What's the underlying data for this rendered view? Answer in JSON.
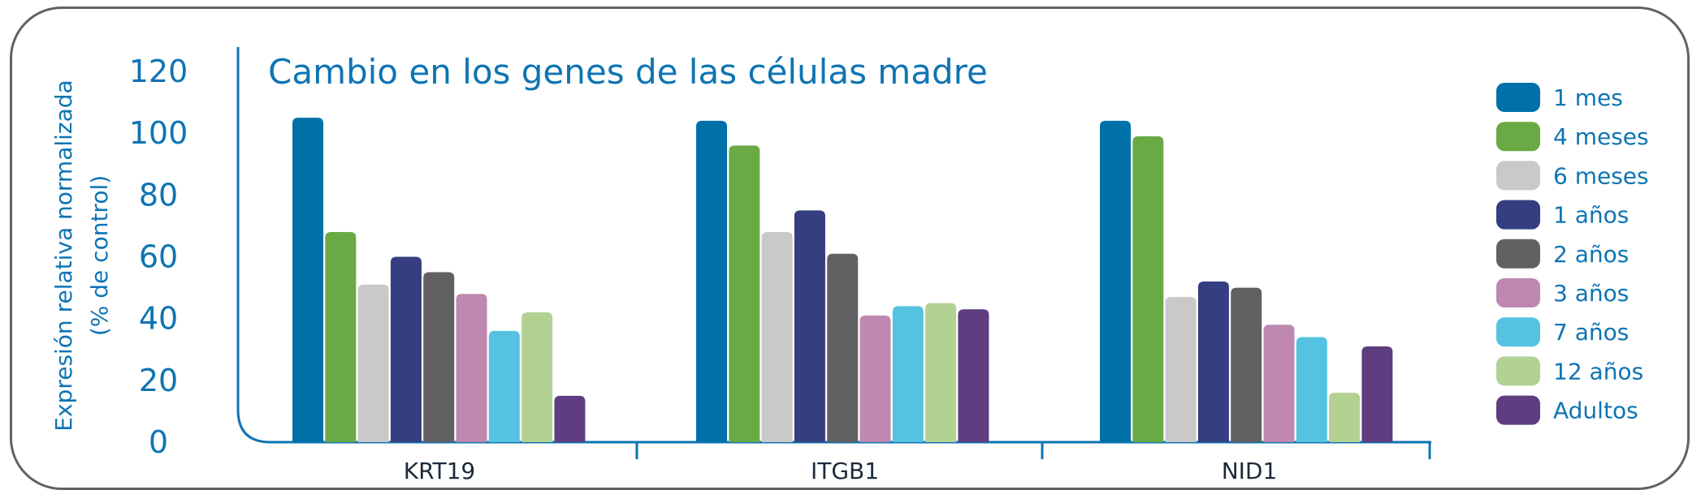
{
  "chart_data": {
    "type": "bar",
    "title": "Cambio en los genes de las células madre",
    "ylabel_line1": "Expresión relativa normalizada",
    "ylabel_line2": "(% de control)",
    "xlabel": "",
    "ylim": [
      0,
      120
    ],
    "yticks": [
      "0",
      "20",
      "40",
      "60",
      "80",
      "100",
      "120"
    ],
    "categories": [
      "KRT19",
      "ITGB1",
      "NID1"
    ],
    "legend_position": "right",
    "grid": false,
    "series": [
      {
        "name": "1 mes",
        "color": "#0071a8",
        "values": [
          105,
          104,
          104
        ]
      },
      {
        "name": "4 meses",
        "color": "#6aaa44",
        "values": [
          68,
          96,
          99
        ]
      },
      {
        "name": "6 meses",
        "color": "#c9c9c9",
        "values": [
          51,
          68,
          47
        ]
      },
      {
        "name": "1 años",
        "color": "#343e80",
        "values": [
          60,
          75,
          52
        ]
      },
      {
        "name": "2 años",
        "color": "#616163",
        "values": [
          55,
          61,
          50
        ]
      },
      {
        "name": "3 años",
        "color": "#bf88b0",
        "values": [
          48,
          41,
          38
        ]
      },
      {
        "name": "7 años",
        "color": "#55c2e2",
        "values": [
          36,
          44,
          34
        ]
      },
      {
        "name": "12 años",
        "color": "#b3d193",
        "values": [
          42,
          45,
          16
        ]
      },
      {
        "name": "Adultos",
        "color": "#5e3d80",
        "values": [
          15,
          43,
          31
        ]
      }
    ]
  }
}
